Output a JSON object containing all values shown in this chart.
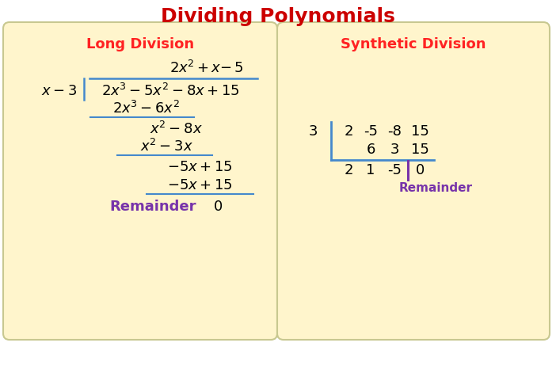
{
  "title": "Dividing Polynomials",
  "title_color": "#CC0000",
  "title_fontsize": 18,
  "bg_color": "#FFFFFF",
  "box_color": "#FFF5CC",
  "box_edge_color": "#C8C890",
  "left_label": "Long Division",
  "right_label": "Synthetic Division",
  "label_color": "#FF2222",
  "label_fontsize": 13,
  "math_color": "#000000",
  "blue_line_color": "#4488CC",
  "purple_color": "#7733AA",
  "figsize": [
    7.02,
    4.71
  ],
  "dpi": 100
}
